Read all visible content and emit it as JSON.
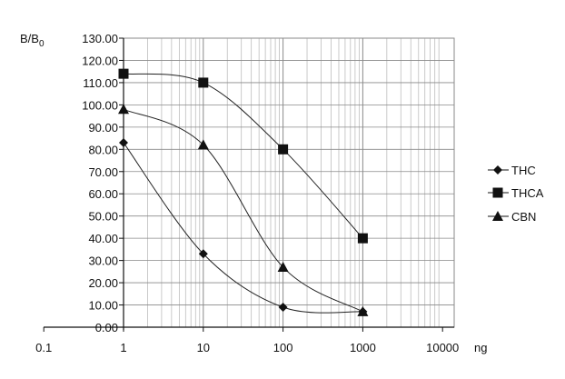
{
  "chart_data": {
    "type": "line",
    "title": "",
    "ylabel_main": "B/B",
    "ylabel_sub": "0",
    "x_unit": "ng",
    "x_scale": "log",
    "xlim": [
      0.1,
      10000
    ],
    "ylim": [
      0,
      130
    ],
    "x_ticks": [
      {
        "value": 0.1,
        "label": "0.1"
      },
      {
        "value": 1,
        "label": "1"
      },
      {
        "value": 10,
        "label": "10"
      },
      {
        "value": 100,
        "label": "100"
      },
      {
        "value": 1000,
        "label": "1000"
      },
      {
        "value": 10000,
        "label": "10000"
      }
    ],
    "y_ticks": [
      {
        "value": 0,
        "label": "0.00"
      },
      {
        "value": 10,
        "label": "10.00"
      },
      {
        "value": 20,
        "label": "20.00"
      },
      {
        "value": 30,
        "label": "30.00"
      },
      {
        "value": 40,
        "label": "40.00"
      },
      {
        "value": 50,
        "label": "50.00"
      },
      {
        "value": 60,
        "label": "60.00"
      },
      {
        "value": 70,
        "label": "70.00"
      },
      {
        "value": 80,
        "label": "80.00"
      },
      {
        "value": 90,
        "label": "90.00"
      },
      {
        "value": 100,
        "label": "100.00"
      },
      {
        "value": 110,
        "label": "110.00"
      },
      {
        "value": 120,
        "label": "120.00"
      },
      {
        "value": 130,
        "label": "130.00"
      }
    ],
    "grid": true,
    "legend_position": "right",
    "x": [
      1,
      10,
      100,
      1000
    ],
    "series": [
      {
        "name": "THC",
        "marker": "diamond",
        "values": [
          83,
          33,
          9,
          7
        ]
      },
      {
        "name": "THCA",
        "marker": "square",
        "values": [
          114,
          110,
          80,
          40
        ]
      },
      {
        "name": "CBN",
        "marker": "triangle",
        "values": [
          98,
          82,
          27,
          7
        ]
      }
    ],
    "colors": {
      "line": "#222222",
      "grid": "#8a8a8a",
      "grid_minor": "#bdbdbd"
    }
  }
}
